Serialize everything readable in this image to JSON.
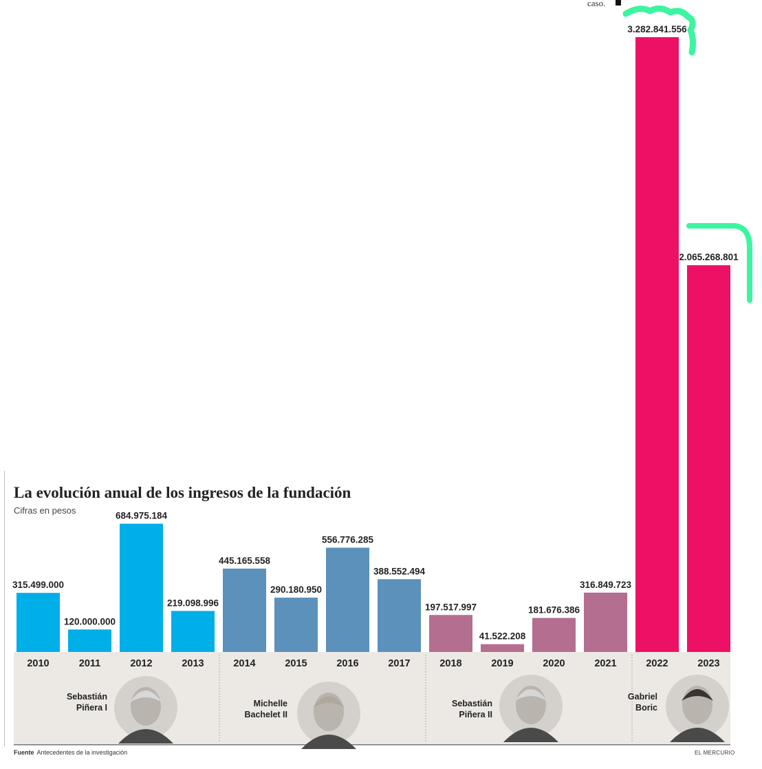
{
  "header": {
    "title": "La evolución anual de los ingresos de la fundación",
    "subtitle": "Cifras en pesos",
    "top_note": "caso."
  },
  "footer": {
    "source_label": "Fuente",
    "source_text": "Antecedentes de la investigación",
    "brand": "EL MERCURIO"
  },
  "presidents": [
    {
      "name": "Sebastián\nPiñera I",
      "years": [
        "2010",
        "2013"
      ],
      "color": "#00aee8",
      "icon": "portrait-icon"
    },
    {
      "name": "Michelle\nBachelet II",
      "years": [
        "2014",
        "2017"
      ],
      "color": "#5b91bb",
      "icon": "portrait-icon"
    },
    {
      "name": "Sebastián\nPiñera II",
      "years": [
        "2018",
        "2021"
      ],
      "color": "#b46e8f",
      "icon": "portrait-icon"
    },
    {
      "name": "Gabriel\nBoric",
      "years": [
        "2022",
        "2023"
      ],
      "color": "#ec1164",
      "icon": "portrait-icon"
    }
  ],
  "chart_data": {
    "type": "bar",
    "title": "La evolución anual de los ingresos de la fundación",
    "subtitle": "Cifras en pesos",
    "categories": [
      "2010",
      "2011",
      "2012",
      "2013",
      "2014",
      "2015",
      "2016",
      "2017",
      "2018",
      "2019",
      "2020",
      "2021",
      "2022",
      "2023"
    ],
    "values": [
      315499000,
      120000000,
      684975184,
      219098996,
      445165558,
      290180950,
      556776285,
      388552494,
      197517997,
      41522208,
      181676386,
      316849723,
      3282841556,
      2065268801
    ],
    "data_labels": [
      "315.499.000",
      "120.000.000",
      "684.975.184",
      "219.098.996",
      "445.165.558",
      "290.180.950",
      "556.776.285",
      "388.552.494",
      "197.517.997",
      "41.522.208",
      "181.676.386",
      "316.849.723",
      "3.282.841.556",
      "2.065.268.801"
    ],
    "colors": [
      "#00aee8",
      "#00aee8",
      "#00aee8",
      "#00aee8",
      "#5b91bb",
      "#5b91bb",
      "#5b91bb",
      "#5b91bb",
      "#b46e8f",
      "#b46e8f",
      "#b46e8f",
      "#b46e8f",
      "#ec1164",
      "#ec1164"
    ],
    "highlight_color": "#3cf5a0",
    "xlabel": "",
    "ylabel": "",
    "ylim": [
      0,
      3282841556
    ],
    "grid": false,
    "legend": "none"
  }
}
